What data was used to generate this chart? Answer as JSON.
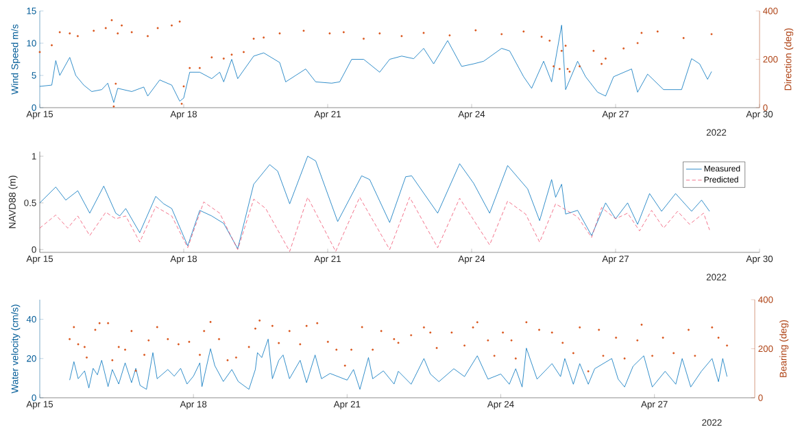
{
  "chart_data": [
    {
      "type": "line",
      "ylabel": "Wind Speed m/s",
      "y2label": "Direction (deg)",
      "xlim": [
        "2022-04-15",
        "2022-04-30"
      ],
      "xticks": [
        {
          "value": "2022-04-15",
          "label": "Apr 15"
        },
        {
          "value": "2022-04-18",
          "label": "Apr 18"
        },
        {
          "value": "2022-04-21",
          "label": "Apr 21"
        },
        {
          "value": "2022-04-24",
          "label": "Apr 24"
        },
        {
          "value": "2022-04-27",
          "label": "Apr 27"
        },
        {
          "value": "2022-04-30",
          "label": "Apr 30"
        }
      ],
      "ylim": [
        0,
        15
      ],
      "yticks": [
        0,
        5,
        10,
        15
      ],
      "y2lim": [
        0,
        400
      ],
      "y2ticks": [
        0,
        200,
        400
      ],
      "annotations": [
        "2022"
      ],
      "series": [
        {
          "color": "#0072bd",
          "x": [
            "2022-04-15T00:00",
            "2022-04-15T06:00",
            "2022-04-15T08:00",
            "2022-04-15T10:00",
            "2022-04-15T15:00",
            "2022-04-15T18:00",
            "2022-04-15T22:00",
            "2022-04-16T02:00",
            "2022-04-16T07:00",
            "2022-04-16T10:00",
            "2022-04-16T13:00",
            "2022-04-16T15:00",
            "2022-04-16T22:00",
            "2022-04-17T04:00",
            "2022-04-17T06:00",
            "2022-04-17T12:00",
            "2022-04-17T18:00",
            "2022-04-17T22:00",
            "2022-04-18T00:00",
            "2022-04-18T03:00",
            "2022-04-18T08:00",
            "2022-04-18T14:00",
            "2022-04-18T18:00",
            "2022-04-18T20:00",
            "2022-04-19T00:00",
            "2022-04-19T03:00",
            "2022-04-19T11:00",
            "2022-04-19T16:00",
            "2022-04-20T00:00",
            "2022-04-20T03:00",
            "2022-04-20T08:00",
            "2022-04-20T13:00",
            "2022-04-20T18:00",
            "2022-04-21T02:00",
            "2022-04-21T06:00",
            "2022-04-21T12:00",
            "2022-04-21T18:00",
            "2022-04-22T02:00",
            "2022-04-22T07:00",
            "2022-04-22T13:00",
            "2022-04-22T19:00",
            "2022-04-23T00:00",
            "2022-04-23T05:00",
            "2022-04-23T12:00",
            "2022-04-23T19:00",
            "2022-04-24T01:00",
            "2022-04-24T06:00",
            "2022-04-24T15:00",
            "2022-04-24T19:00",
            "2022-04-25T02:00",
            "2022-04-25T06:00",
            "2022-04-25T12:00",
            "2022-04-25T16:00",
            "2022-04-25T21:00",
            "2022-04-25T23:00",
            "2022-04-26T05:00",
            "2022-04-26T09:00",
            "2022-04-26T15:00",
            "2022-04-26T19:00",
            "2022-04-26T23:00",
            "2022-04-27T08:00",
            "2022-04-27T11:00",
            "2022-04-27T16:00",
            "2022-04-28T00:00",
            "2022-04-28T09:00",
            "2022-04-28T14:00",
            "2022-04-28T18:00",
            "2022-04-28T22:00",
            "2022-04-29T00:00"
          ],
          "values": [
            3.3,
            3.5,
            7.3,
            5.0,
            7.8,
            5.0,
            3.5,
            2.5,
            2.8,
            3.8,
            0.8,
            3.0,
            2.5,
            3.2,
            1.8,
            4.3,
            3.5,
            1.0,
            1.5,
            5.5,
            5.5,
            4.5,
            5.5,
            4.0,
            7.5,
            4.5,
            8.0,
            8.5,
            7.0,
            4.0,
            5.0,
            6.0,
            4.0,
            3.8,
            4.0,
            7.5,
            7.5,
            5.5,
            7.5,
            8.0,
            7.6,
            9.2,
            6.8,
            10.4,
            6.4,
            6.8,
            7.2,
            9.2,
            8.8,
            4.8,
            3.0,
            7.2,
            4.0,
            12.8,
            2.8,
            7.2,
            4.8,
            2.4,
            1.8,
            4.8,
            6.0,
            2.4,
            5.2,
            2.8,
            2.8,
            7.6,
            6.8,
            4.4,
            5.6
          ]
        },
        {
          "type": "scatter",
          "axis": "y2",
          "color": "#d95319",
          "x": [
            "2022-04-15T00:00",
            "2022-04-15T06:00",
            "2022-04-15T10:00",
            "2022-04-15T15:00",
            "2022-04-15T19:00",
            "2022-04-16T03:00",
            "2022-04-16T09:00",
            "2022-04-16T12:00",
            "2022-04-16T13:00",
            "2022-04-16T14:00",
            "2022-04-16T15:00",
            "2022-04-16T17:00",
            "2022-04-16T22:00",
            "2022-04-17T06:00",
            "2022-04-17T11:00",
            "2022-04-17T18:00",
            "2022-04-17T22:00",
            "2022-04-17T23:00",
            "2022-04-18T00:00",
            "2022-04-18T03:00",
            "2022-04-18T08:00",
            "2022-04-18T14:00",
            "2022-04-18T20:00",
            "2022-04-19T00:00",
            "2022-04-19T06:00",
            "2022-04-19T11:00",
            "2022-04-19T16:00",
            "2022-04-20T00:00",
            "2022-04-20T12:00",
            "2022-04-21T01:00",
            "2022-04-21T08:00",
            "2022-04-21T18:00",
            "2022-04-22T02:00",
            "2022-04-22T13:00",
            "2022-04-23T00:00",
            "2022-04-23T13:00",
            "2022-04-24T02:00",
            "2022-04-24T15:00",
            "2022-04-25T02:00",
            "2022-04-25T11:00",
            "2022-04-25T15:00",
            "2022-04-25T17:00",
            "2022-04-25T20:00",
            "2022-04-25T21:00",
            "2022-04-25T23:00",
            "2022-04-26T00:00",
            "2022-04-26T01:00",
            "2022-04-26T06:00",
            "2022-04-26T13:00",
            "2022-04-26T17:00",
            "2022-04-26T19:00",
            "2022-04-27T04:00",
            "2022-04-27T11:00",
            "2022-04-27T13:00",
            "2022-04-27T21:00",
            "2022-04-28T10:00",
            "2022-04-29T00:00"
          ],
          "values": [
            230,
            258,
            312,
            307,
            296,
            318,
            329,
            362,
            5,
            99,
            307,
            340,
            312,
            296,
            329,
            340,
            356,
            16,
            88,
            164,
            164,
            208,
            203,
            219,
            230,
            285,
            290,
            307,
            318,
            307,
            312,
            285,
            307,
            296,
            309,
            299,
            320,
            304,
            315,
            293,
            277,
            171,
            160,
            235,
            256,
            160,
            149,
            171,
            235,
            181,
            203,
            245,
            267,
            309,
            315,
            288,
            304
          ]
        }
      ]
    },
    {
      "type": "line",
      "ylabel": "NAVD88 (m)",
      "legend": "top right",
      "xlim": [
        "2022-04-15",
        "2022-04-30"
      ],
      "xticks": [
        {
          "value": "2022-04-15",
          "label": "Apr 15"
        },
        {
          "value": "2022-04-18",
          "label": "Apr 18"
        },
        {
          "value": "2022-04-21",
          "label": "Apr 21"
        },
        {
          "value": "2022-04-24",
          "label": "Apr 24"
        },
        {
          "value": "2022-04-27",
          "label": "Apr 27"
        },
        {
          "value": "2022-04-30",
          "label": "Apr 30"
        }
      ],
      "ylim": [
        -0.03,
        1.05
      ],
      "yticks": [
        0,
        0.5,
        1
      ],
      "annotations": [
        "2022"
      ],
      "series": [
        {
          "name": "Measured",
          "line_style": "solid",
          "color": "#0072bd",
          "x": [
            "2022-04-15T00:00",
            "2022-04-15T08:00",
            "2022-04-15T13:00",
            "2022-04-15T19:00",
            "2022-04-16T01:00",
            "2022-04-16T08:00",
            "2022-04-16T14:00",
            "2022-04-16T16:00",
            "2022-04-16T19:00",
            "2022-04-17T02:00",
            "2022-04-17T10:00",
            "2022-04-17T14:00",
            "2022-04-17T18:00",
            "2022-04-18T02:00",
            "2022-04-18T08:00",
            "2022-04-18T14:00",
            "2022-04-18T20:00",
            "2022-04-19T03:00",
            "2022-04-19T11:00",
            "2022-04-19T19:00",
            "2022-04-19T23:00",
            "2022-04-20T05:00",
            "2022-04-20T14:00",
            "2022-04-20T18:00",
            "2022-04-21T05:00",
            "2022-04-21T17:00",
            "2022-04-21T21:00",
            "2022-04-22T07:00",
            "2022-04-22T15:00",
            "2022-04-22T18:00",
            "2022-04-23T07:00",
            "2022-04-23T18:00",
            "2022-04-24T01:00",
            "2022-04-24T09:00",
            "2022-04-24T18:00",
            "2022-04-25T04:00",
            "2022-04-25T10:00",
            "2022-04-25T16:00",
            "2022-04-25T18:00",
            "2022-04-25T21:00",
            "2022-04-25T23:00",
            "2022-04-26T05:00",
            "2022-04-26T12:00",
            "2022-04-26T19:00",
            "2022-04-27T00:00",
            "2022-04-27T06:00",
            "2022-04-27T11:00",
            "2022-04-27T17:00",
            "2022-04-27T23:00",
            "2022-04-28T06:00",
            "2022-04-28T14:00",
            "2022-04-28T19:00",
            "2022-04-28T23:00"
          ],
          "values": [
            0.5,
            0.67,
            0.53,
            0.63,
            0.39,
            0.68,
            0.39,
            0.36,
            0.44,
            0.18,
            0.57,
            0.49,
            0.44,
            0.04,
            0.42,
            0.36,
            0.28,
            0.01,
            0.7,
            0.91,
            0.84,
            0.49,
            1.0,
            0.95,
            0.3,
            0.79,
            0.75,
            0.29,
            0.78,
            0.79,
            0.39,
            0.92,
            0.71,
            0.39,
            0.9,
            0.65,
            0.31,
            0.75,
            0.56,
            0.7,
            0.38,
            0.42,
            0.15,
            0.5,
            0.33,
            0.5,
            0.27,
            0.6,
            0.41,
            0.6,
            0.41,
            0.53,
            0.41
          ]
        },
        {
          "name": "Predicted",
          "line_style": "dashed",
          "color": "#f0506e",
          "x": [
            "2022-04-15T00:00",
            "2022-04-15T08:00",
            "2022-04-15T14:00",
            "2022-04-15T19:00",
            "2022-04-16T01:00",
            "2022-04-16T09:00",
            "2022-04-16T14:00",
            "2022-04-16T19:00",
            "2022-04-17T02:00",
            "2022-04-17T10:00",
            "2022-04-17T18:00",
            "2022-04-18T02:00",
            "2022-04-18T10:00",
            "2022-04-18T18:00",
            "2022-04-19T03:00",
            "2022-04-19T11:00",
            "2022-04-19T17:00",
            "2022-04-20T05:00",
            "2022-04-20T14:00",
            "2022-04-21T04:00",
            "2022-04-21T16:00",
            "2022-04-22T07:00",
            "2022-04-22T17:00",
            "2022-04-23T07:00",
            "2022-04-23T18:00",
            "2022-04-24T09:00",
            "2022-04-24T18:00",
            "2022-04-25T03:00",
            "2022-04-25T10:00",
            "2022-04-25T18:00",
            "2022-04-26T05:00",
            "2022-04-26T12:00",
            "2022-04-26T17:00",
            "2022-04-27T00:00",
            "2022-04-27T06:00",
            "2022-04-27T12:00",
            "2022-04-27T18:00",
            "2022-04-28T00:00",
            "2022-04-28T07:00",
            "2022-04-28T13:00",
            "2022-04-28T20:00",
            "2022-04-28T23:00"
          ],
          "values": [
            0.23,
            0.37,
            0.23,
            0.36,
            0.15,
            0.4,
            0.33,
            0.36,
            0.08,
            0.46,
            0.36,
            0.02,
            0.51,
            0.39,
            0.0,
            0.54,
            0.44,
            -0.02,
            0.56,
            -0.02,
            0.56,
            0.0,
            0.56,
            0.02,
            0.55,
            0.05,
            0.52,
            0.38,
            0.08,
            0.49,
            0.35,
            0.13,
            0.45,
            0.33,
            0.39,
            0.2,
            0.42,
            0.23,
            0.41,
            0.27,
            0.39,
            0.21
          ]
        }
      ]
    },
    {
      "type": "line",
      "ylabel": "Water velocity (cm/s)",
      "y2label": "Bearing (deg)",
      "xlim": [
        "2022-04-15",
        "2022-04-28T23:00"
      ],
      "xticks": [
        {
          "value": "2022-04-15",
          "label": "Apr 15"
        },
        {
          "value": "2022-04-18",
          "label": "Apr 18"
        },
        {
          "value": "2022-04-21",
          "label": "Apr 21"
        },
        {
          "value": "2022-04-24",
          "label": "Apr 24"
        },
        {
          "value": "2022-04-27",
          "label": "Apr 27"
        }
      ],
      "ylim": [
        0,
        50
      ],
      "yticks": [
        0,
        20,
        40
      ],
      "y2lim": [
        0,
        400
      ],
      "y2ticks": [
        0,
        200,
        400
      ],
      "annotations": [
        "2022"
      ],
      "series": [
        {
          "color": "#0072bd",
          "x": [
            "2022-04-15T14:00",
            "2022-04-15T16:00",
            "2022-04-15T18:00",
            "2022-04-15T21:00",
            "2022-04-15T23:00",
            "2022-04-16T01:00",
            "2022-04-16T03:00",
            "2022-04-16T05:00",
            "2022-04-16T08:00",
            "2022-04-16T10:00",
            "2022-04-16T13:00",
            "2022-04-16T16:00",
            "2022-04-16T19:00",
            "2022-04-16T21:00",
            "2022-04-16T23:00",
            "2022-04-17T02:00",
            "2022-04-17T05:00",
            "2022-04-17T07:00",
            "2022-04-17T12:00",
            "2022-04-17T15:00",
            "2022-04-17T18:00",
            "2022-04-17T21:00",
            "2022-04-18T00:00",
            "2022-04-18T03:00",
            "2022-04-18T04:00",
            "2022-04-18T08:00",
            "2022-04-18T10:00",
            "2022-04-18T14:00",
            "2022-04-18T18:00",
            "2022-04-18T21:00",
            "2022-04-19T02:00",
            "2022-04-19T05:00",
            "2022-04-19T06:00",
            "2022-04-19T08:00",
            "2022-04-19T11:00",
            "2022-04-19T13:00",
            "2022-04-19T16:00",
            "2022-04-19T18:00",
            "2022-04-19T21:00",
            "2022-04-20T02:00",
            "2022-04-20T05:00",
            "2022-04-20T09:00",
            "2022-04-20T12:00",
            "2022-04-20T16:00",
            "2022-04-21T00:00",
            "2022-04-21T03:00",
            "2022-04-21T06:00",
            "2022-04-21T10:00",
            "2022-04-21T12:00",
            "2022-04-21T17:00",
            "2022-04-21T22:00",
            "2022-04-22T00:00",
            "2022-04-22T06:00",
            "2022-04-22T12:00",
            "2022-04-22T15:00",
            "2022-04-22T19:00",
            "2022-04-23T02:00",
            "2022-04-23T07:00",
            "2022-04-23T13:00",
            "2022-04-23T18:00",
            "2022-04-24T00:00",
            "2022-04-24T04:00",
            "2022-04-24T07:00",
            "2022-04-24T10:00",
            "2022-04-24T12:00",
            "2022-04-24T17:00",
            "2022-04-25T00:00",
            "2022-04-25T04:00",
            "2022-04-25T06:00",
            "2022-04-25T10:00",
            "2022-04-25T13:00",
            "2022-04-25T17:00",
            "2022-04-25T20:00",
            "2022-04-26T04:00",
            "2022-04-26T07:00",
            "2022-04-26T10:00",
            "2022-04-26T14:00",
            "2022-04-26T19:00",
            "2022-04-26T23:00",
            "2022-04-27T05:00",
            "2022-04-27T10:00",
            "2022-04-27T13:00",
            "2022-04-27T17:00",
            "2022-04-27T22:00",
            "2022-04-28T03:00",
            "2022-04-28T06:00",
            "2022-04-28T08:00",
            "2022-04-28T10:00"
          ],
          "values": [
            9.0,
            18.4,
            9.7,
            13.7,
            5.0,
            15.0,
            11.7,
            19.1,
            5.7,
            14.4,
            7.0,
            17.8,
            7.7,
            15.0,
            6.3,
            4.3,
            23.0,
            9.7,
            14.4,
            11.0,
            15.0,
            7.0,
            11.0,
            17.8,
            5.7,
            25.0,
            16.4,
            8.3,
            14.4,
            8.3,
            4.3,
            14.4,
            23.0,
            20.5,
            29.9,
            9.7,
            19.1,
            21.8,
            9.7,
            19.1,
            7.7,
            21.8,
            9.7,
            12.4,
            9.0,
            14.4,
            4.3,
            20.5,
            9.7,
            13.7,
            7.0,
            13.5,
            6.9,
            20.0,
            12.1,
            8.2,
            14.8,
            10.8,
            21.4,
            9.5,
            12.1,
            6.9,
            14.8,
            5.5,
            25.3,
            9.5,
            17.4,
            10.8,
            20.0,
            6.9,
            17.4,
            6.9,
            14.8,
            20.0,
            9.5,
            5.5,
            16.1,
            21.4,
            5.5,
            13.5,
            6.9,
            20.0,
            5.5,
            13.5,
            20.0,
            8.2,
            20.0,
            10.8
          ]
        },
        {
          "type": "scatter",
          "axis": "y2",
          "color": "#d95319",
          "x": [
            "2022-04-15T14:00",
            "2022-04-15T16:00",
            "2022-04-15T18:00",
            "2022-04-15T21:00",
            "2022-04-15T22:00",
            "2022-04-16T02:00",
            "2022-04-16T04:00",
            "2022-04-16T08:00",
            "2022-04-16T10:00",
            "2022-04-16T13:00",
            "2022-04-16T16:00",
            "2022-04-16T19:00",
            "2022-04-16T21:00",
            "2022-04-17T01:00",
            "2022-04-17T03:00",
            "2022-04-17T07:00",
            "2022-04-17T12:00",
            "2022-04-17T17:00",
            "2022-04-17T22:00",
            "2022-04-18T03:00",
            "2022-04-18T05:00",
            "2022-04-18T08:00",
            "2022-04-18T12:00",
            "2022-04-18T16:00",
            "2022-04-18T20:00",
            "2022-04-19T02:00",
            "2022-04-19T05:00",
            "2022-04-19T07:00",
            "2022-04-19T13:00",
            "2022-04-19T16:00",
            "2022-04-19T21:00",
            "2022-04-20T02:00",
            "2022-04-20T05:00",
            "2022-04-20T10:00",
            "2022-04-20T15:00",
            "2022-04-20T19:00",
            "2022-04-20T23:00",
            "2022-04-21T02:00",
            "2022-04-21T07:00",
            "2022-04-21T12:00",
            "2022-04-21T16:00",
            "2022-04-21T22:00",
            "2022-04-22T00:00",
            "2022-04-22T06:00",
            "2022-04-22T12:00",
            "2022-04-22T15:00",
            "2022-04-22T18:00",
            "2022-04-23T01:00",
            "2022-04-23T07:00",
            "2022-04-23T11:00",
            "2022-04-23T13:00",
            "2022-04-23T18:00",
            "2022-04-23T21:00",
            "2022-04-24T01:00",
            "2022-04-24T05:00",
            "2022-04-24T07:00",
            "2022-04-24T12:00",
            "2022-04-24T18:00",
            "2022-04-25T00:00",
            "2022-04-25T05:00",
            "2022-04-25T10:00",
            "2022-04-25T13:00",
            "2022-04-25T17:00",
            "2022-04-25T22:00",
            "2022-04-26T00:00",
            "2022-04-26T06:00",
            "2022-04-26T10:00",
            "2022-04-26T16:00",
            "2022-04-26T18:00",
            "2022-04-26T23:00",
            "2022-04-27T04:00",
            "2022-04-27T09:00",
            "2022-04-27T16:00",
            "2022-04-27T19:00",
            "2022-04-28T03:00",
            "2022-04-28T06:00",
            "2022-04-28T10:00"
          ],
          "values": [
            239,
            288,
            218,
            207,
            164,
            277,
            304,
            304,
            153,
            207,
            196,
            272,
            110,
            175,
            234,
            288,
            239,
            218,
            228,
            175,
            272,
            309,
            239,
            153,
            164,
            207,
            282,
            315,
            293,
            223,
            272,
            218,
            293,
            304,
            228,
            196,
            131,
            196,
            288,
            196,
            272,
            239,
            224,
            255,
            287,
            266,
            203,
            266,
            213,
            287,
            308,
            234,
            171,
            266,
            234,
            160,
            308,
            277,
            266,
            224,
            182,
            287,
            108,
            277,
            171,
            245,
            160,
            234,
            298,
            171,
            245,
            182,
            277,
            171,
            287,
            245,
            213
          ]
        }
      ]
    }
  ]
}
